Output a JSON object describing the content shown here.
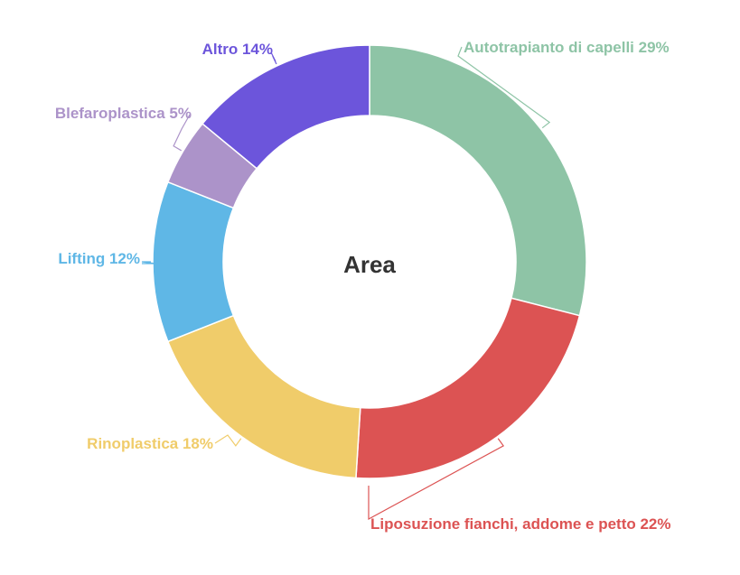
{
  "chart_data": {
    "type": "pie",
    "variant": "donut",
    "center_label": "Area",
    "slices": [
      {
        "name": "Autotrapianto di capelli",
        "value": 29,
        "color": "#8ec4a6"
      },
      {
        "name": "Liposuzione fianchi, addome e petto",
        "value": 22,
        "color": "#dc5353"
      },
      {
        "name": "Rinoplastica",
        "value": 18,
        "color": "#f0cc6a"
      },
      {
        "name": "Lifting",
        "value": 12,
        "color": "#5fb7e6"
      },
      {
        "name": "Blefaroplastica",
        "value": 5,
        "color": "#ac93c9"
      },
      {
        "name": "Altro",
        "value": 14,
        "color": "#6c55db"
      }
    ],
    "legend": "none",
    "data_labels": "outside"
  }
}
